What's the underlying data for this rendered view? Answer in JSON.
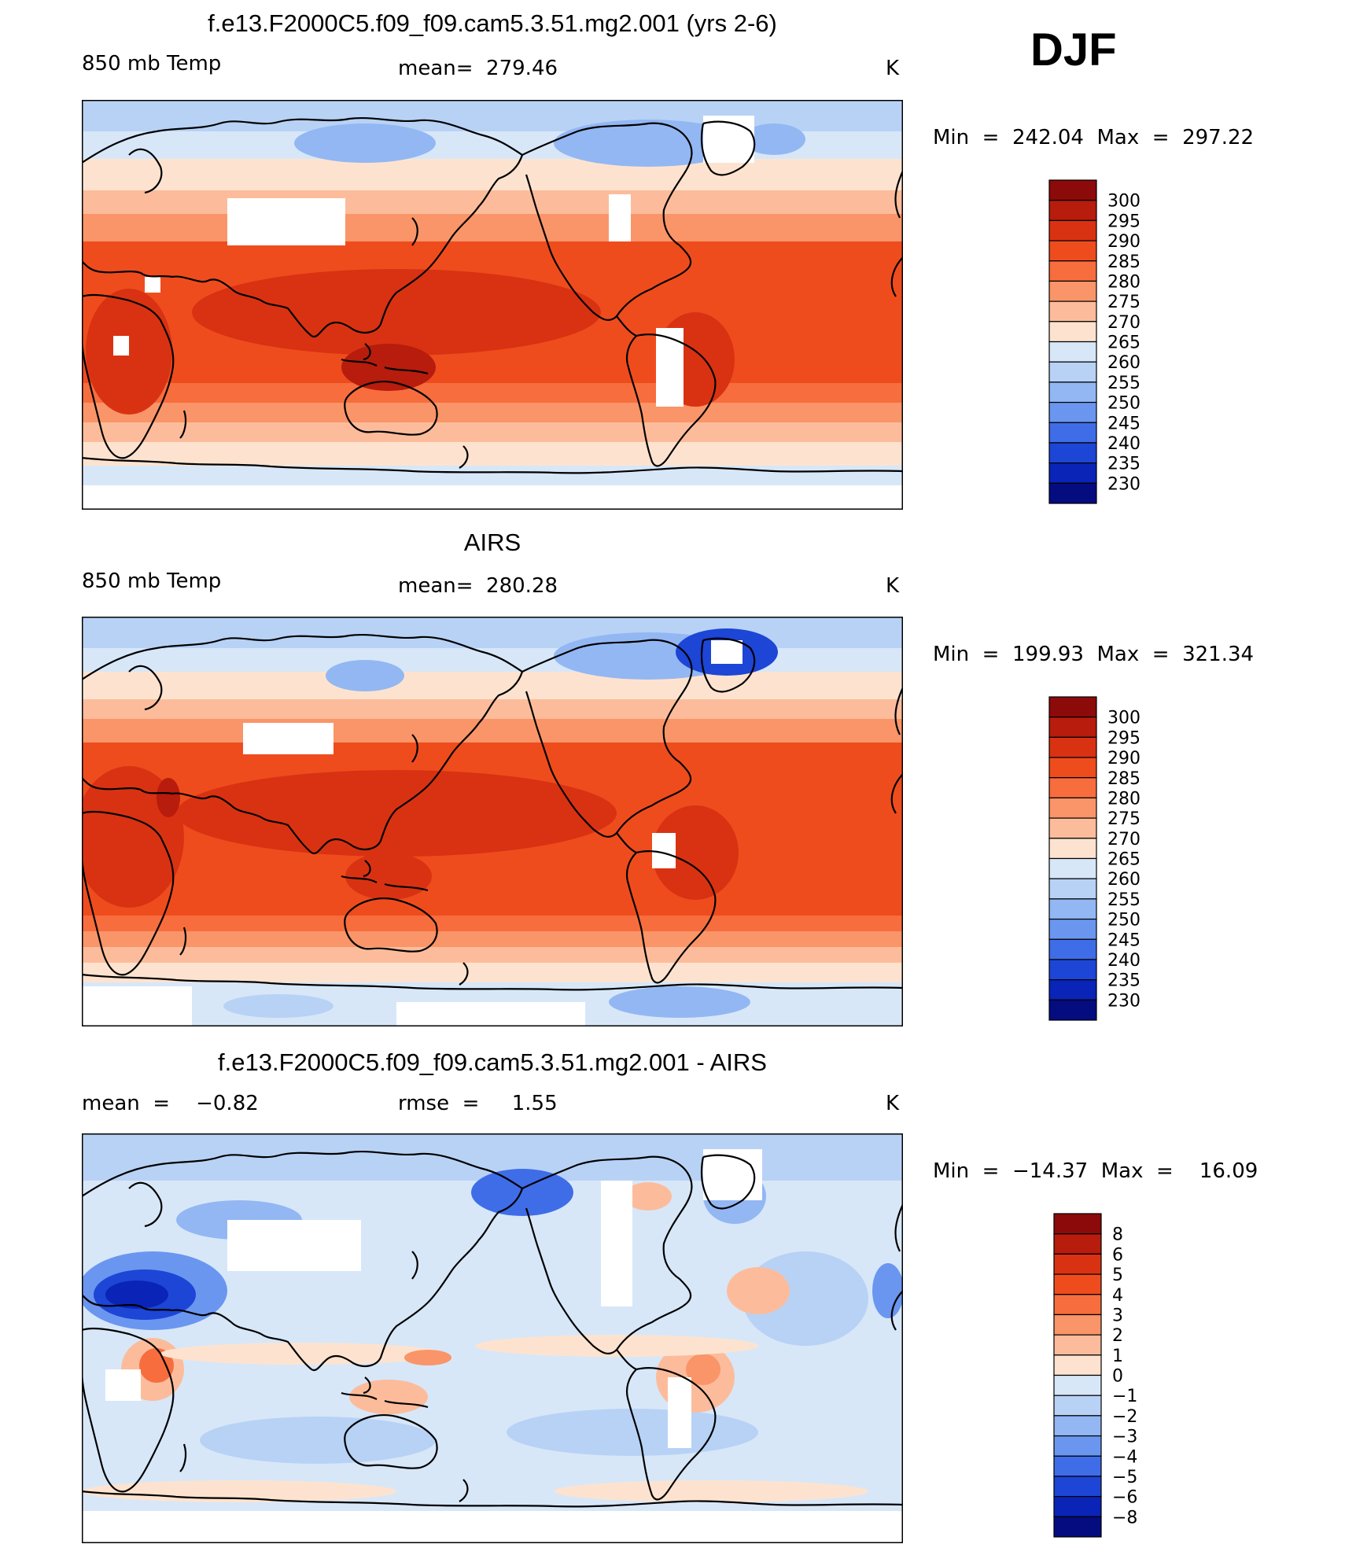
{
  "season": "DJF",
  "panels": [
    {
      "title": "f.e13.F2000C5.f09_f09.cam5.3.51.mg2.001 (yrs 2-6)",
      "left_label": "850 mb Temp",
      "mid_label": "mean=  279.46",
      "units": "K",
      "minmax": "Min  =  242.04  Max  =  297.22",
      "colorbar": {
        "labels": [
          "300",
          "295",
          "290",
          "285",
          "280",
          "275",
          "270",
          "265",
          "260",
          "255",
          "250",
          "245",
          "240",
          "235",
          "230"
        ],
        "colors": [
          "#8c0a0a",
          "#b71c0c",
          "#d93212",
          "#ef4c1e",
          "#f76d3e",
          "#f99568",
          "#fcbc9b",
          "#fde3cf",
          "#d7e7f8",
          "#b8d2f5",
          "#93b7f3",
          "#6a96f0",
          "#3f6de8",
          "#1d45d6",
          "#0a24b8",
          "#040c80"
        ]
      }
    },
    {
      "title": "AIRS",
      "left_label": "850 mb Temp",
      "mid_label": "mean=  280.28",
      "units": "K",
      "minmax": "Min  =  199.93  Max  =  321.34",
      "colorbar": {
        "labels": [
          "300",
          "295",
          "290",
          "285",
          "280",
          "275",
          "270",
          "265",
          "260",
          "255",
          "250",
          "245",
          "240",
          "235",
          "230"
        ],
        "colors": [
          "#8c0a0a",
          "#b71c0c",
          "#d93212",
          "#ef4c1e",
          "#f76d3e",
          "#f99568",
          "#fcbc9b",
          "#fde3cf",
          "#d7e7f8",
          "#b8d2f5",
          "#93b7f3",
          "#6a96f0",
          "#3f6de8",
          "#1d45d6",
          "#0a24b8",
          "#040c80"
        ]
      }
    },
    {
      "title": "f.e13.F2000C5.f09_f09.cam5.3.51.mg2.001 - AIRS",
      "left_label": "mean  =    −0.82",
      "mid_label": "rmse  =     1.55",
      "units": "K",
      "minmax": "Min  =  −14.37  Max  =    16.09",
      "colorbar": {
        "labels": [
          "8",
          "6",
          "5",
          "4",
          "3",
          "2",
          "1",
          "0",
          "−1",
          "−2",
          "−3",
          "−4",
          "−5",
          "−6",
          "−8"
        ],
        "colors": [
          "#8c0a0a",
          "#b71c0c",
          "#d93212",
          "#ef4c1e",
          "#f76d3e",
          "#f99568",
          "#fcbc9b",
          "#fde3cf",
          "#d7e7f8",
          "#b8d2f5",
          "#93b7f3",
          "#6a96f0",
          "#3f6de8",
          "#1d45d6",
          "#0a24b8",
          "#040c80"
        ]
      }
    }
  ]
}
